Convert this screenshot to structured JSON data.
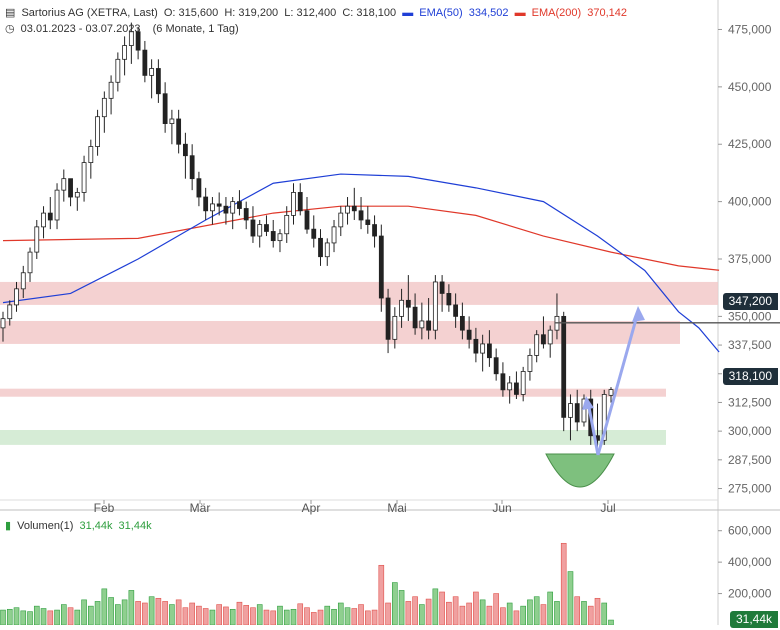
{
  "header": {
    "title": "Sartorius AG (XETRA, Last)",
    "open": "O: 315,600",
    "high": "H: 319,200",
    "low": "L: 312,400",
    "close": "C: 318,100",
    "ema50_label": "EMA(50)",
    "ema50_value": "334,502",
    "ema200_label": "EMA(200)",
    "ema200_value": "370,142",
    "date_range": "03.01.2023 - 03.07.2023",
    "period": "(6 Monate, 1 Tag)"
  },
  "volume_header": {
    "label": "Volumen(1)",
    "value1": "31,44k",
    "value2": "31,44k"
  },
  "markers": {
    "last_price": "318,100",
    "level": "347,200",
    "volume_last": "31,44k"
  },
  "colors": {
    "up": "#2e9e3e",
    "down": "#e0504a",
    "ema50": "#1f3fd6",
    "ema200": "#e0382a",
    "resistance": "#f2c9c9",
    "support": "#cfe9cf",
    "arrow": "#9aa8ee",
    "cup": "#7ec07e"
  },
  "chart_data": {
    "type": "candlestick",
    "title": "Sartorius AG (XETRA, Last)",
    "ylim": [
      270000,
      480000
    ],
    "yticks": [
      "475,000",
      "450,000",
      "425,000",
      "400,000",
      "375,000",
      "350,000",
      "337,500",
      "325,000",
      "312,500",
      "300,000",
      "287,500",
      "275,000"
    ],
    "xticks": [
      "Feb",
      "Mär",
      "Apr",
      "Mai",
      "Jun",
      "Jul"
    ],
    "zones": [
      {
        "name": "resistance-upper",
        "from": 355000,
        "to": 365000
      },
      {
        "name": "resistance-lower",
        "from": 338000,
        "to": 348000
      },
      {
        "name": "resistance-thin",
        "from": 315000,
        "to": 318500
      },
      {
        "name": "support",
        "from": 294000,
        "to": 300500
      }
    ],
    "horizontal_level": 347200,
    "candles_ohlc": [
      [
        345,
        352,
        339,
        349
      ],
      [
        349,
        357,
        346,
        355
      ],
      [
        355,
        365,
        352,
        362
      ],
      [
        362,
        372,
        358,
        369
      ],
      [
        369,
        380,
        365,
        378
      ],
      [
        378,
        392,
        375,
        389
      ],
      [
        389,
        398,
        384,
        395
      ],
      [
        395,
        402,
        388,
        392
      ],
      [
        392,
        408,
        388,
        405
      ],
      [
        405,
        414,
        400,
        410
      ],
      [
        410,
        410,
        398,
        402
      ],
      [
        402,
        406,
        396,
        404
      ],
      [
        404,
        420,
        400,
        417
      ],
      [
        417,
        427,
        410,
        424
      ],
      [
        424,
        440,
        420,
        437
      ],
      [
        437,
        448,
        430,
        445
      ],
      [
        445,
        455,
        438,
        452
      ],
      [
        452,
        465,
        448,
        462
      ],
      [
        462,
        472,
        455,
        468
      ],
      [
        468,
        478,
        460,
        474
      ],
      [
        474,
        476,
        462,
        466
      ],
      [
        466,
        470,
        452,
        455
      ],
      [
        455,
        462,
        445,
        458
      ],
      [
        458,
        462,
        443,
        447
      ],
      [
        447,
        452,
        430,
        434
      ],
      [
        434,
        440,
        425,
        436
      ],
      [
        436,
        440,
        421,
        425
      ],
      [
        425,
        430,
        410,
        420
      ],
      [
        420,
        425,
        405,
        410
      ],
      [
        410,
        413,
        398,
        402
      ],
      [
        402,
        406,
        392,
        396
      ],
      [
        396,
        402,
        390,
        399
      ],
      [
        399,
        404,
        394,
        398
      ],
      [
        398,
        402,
        390,
        395
      ],
      [
        395,
        402,
        388,
        400
      ],
      [
        400,
        405,
        394,
        397
      ],
      [
        397,
        400,
        388,
        392
      ],
      [
        392,
        398,
        382,
        385
      ],
      [
        385,
        392,
        380,
        390
      ],
      [
        390,
        394,
        385,
        387
      ],
      [
        387,
        392,
        380,
        383
      ],
      [
        383,
        388,
        378,
        386
      ],
      [
        386,
        398,
        382,
        394
      ],
      [
        394,
        408,
        390,
        404
      ],
      [
        404,
        408,
        394,
        396
      ],
      [
        396,
        402,
        386,
        388
      ],
      [
        388,
        394,
        380,
        384
      ],
      [
        384,
        388,
        372,
        376
      ],
      [
        376,
        384,
        372,
        382
      ],
      [
        382,
        392,
        378,
        389
      ],
      [
        389,
        398,
        385,
        395
      ],
      [
        395,
        402,
        390,
        398
      ],
      [
        398,
        406,
        392,
        396
      ],
      [
        396,
        402,
        388,
        392
      ],
      [
        392,
        398,
        386,
        390
      ],
      [
        390,
        394,
        380,
        385
      ],
      [
        385,
        390,
        352,
        358
      ],
      [
        358,
        362,
        334,
        340
      ],
      [
        340,
        354,
        336,
        350
      ],
      [
        350,
        362,
        345,
        357
      ],
      [
        357,
        368,
        348,
        354
      ],
      [
        354,
        360,
        342,
        345
      ],
      [
        345,
        356,
        340,
        348
      ],
      [
        348,
        358,
        340,
        344
      ],
      [
        344,
        368,
        340,
        365
      ],
      [
        365,
        368,
        352,
        360
      ],
      [
        360,
        364,
        352,
        355
      ],
      [
        355,
        360,
        345,
        350
      ],
      [
        350,
        356,
        340,
        344
      ],
      [
        344,
        350,
        336,
        340
      ],
      [
        340,
        345,
        330,
        334
      ],
      [
        334,
        342,
        326,
        338
      ],
      [
        338,
        344,
        328,
        332
      ],
      [
        332,
        336,
        322,
        325
      ],
      [
        325,
        330,
        315,
        318
      ],
      [
        318,
        324,
        312,
        321
      ],
      [
        321,
        326,
        314,
        316
      ],
      [
        316,
        328,
        313,
        326
      ],
      [
        326,
        336,
        322,
        333
      ],
      [
        333,
        344,
        330,
        342
      ],
      [
        342,
        350,
        336,
        338
      ],
      [
        338,
        346,
        332,
        344
      ],
      [
        344,
        360,
        340,
        350
      ],
      [
        350,
        352,
        300,
        306
      ],
      [
        306,
        316,
        296,
        312
      ],
      [
        312,
        318,
        300,
        304
      ],
      [
        304,
        316,
        302,
        314
      ],
      [
        314,
        318,
        294,
        298
      ],
      [
        298,
        312,
        290,
        296
      ],
      [
        296,
        318,
        294,
        316
      ],
      [
        315.6,
        319.2,
        312.4,
        318.1
      ]
    ],
    "ema50": [
      [
        0,
        356
      ],
      [
        10,
        360
      ],
      [
        20,
        375
      ],
      [
        30,
        392
      ],
      [
        40,
        408
      ],
      [
        50,
        412
      ],
      [
        60,
        411
      ],
      [
        70,
        406
      ],
      [
        80,
        400
      ],
      [
        88,
        385
      ],
      [
        95,
        370
      ],
      [
        100,
        352
      ],
      [
        103,
        345
      ],
      [
        106,
        334.5
      ]
    ],
    "ema200": [
      [
        0,
        383
      ],
      [
        20,
        384
      ],
      [
        40,
        395
      ],
      [
        50,
        398
      ],
      [
        60,
        398
      ],
      [
        70,
        394
      ],
      [
        80,
        385
      ],
      [
        90,
        378
      ],
      [
        100,
        372
      ],
      [
        106,
        370.1
      ]
    ],
    "volume_ylim": [
      0,
      700000
    ],
    "volume_ticks": [
      "600,000",
      "400,000",
      "200,000"
    ],
    "volume_values": [
      95,
      100,
      110,
      90,
      85,
      120,
      105,
      90,
      95,
      130,
      110,
      95,
      160,
      120,
      150,
      230,
      175,
      130,
      160,
      220,
      150,
      140,
      180,
      170,
      150,
      130,
      160,
      110,
      140,
      120,
      105,
      95,
      130,
      115,
      100,
      145,
      125,
      110,
      130,
      95,
      90,
      120,
      95,
      100,
      135,
      110,
      80,
      95,
      120,
      100,
      140,
      110,
      105,
      130,
      90,
      95,
      380,
      140,
      270,
      220,
      150,
      180,
      130,
      165,
      230,
      210,
      145,
      180,
      120,
      140,
      210,
      160,
      120,
      200,
      110,
      140,
      90,
      120,
      160,
      180,
      130,
      210,
      150,
      520,
      340,
      180,
      150,
      120,
      170,
      140,
      31.44
    ]
  }
}
